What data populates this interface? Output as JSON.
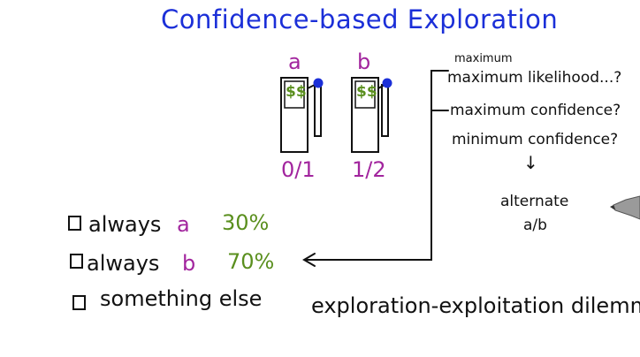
{
  "title": "Confidence-based Exploration",
  "machines": [
    {
      "label": "a",
      "symbol": "$$",
      "score": "0/1"
    },
    {
      "label": "b",
      "symbol": "$$",
      "score": "1/2"
    }
  ],
  "notes": {
    "maximum_small": "maximum",
    "maximum_likelihood": "maximum likelihood...?",
    "maximum_confidence": "maximum confidence?",
    "minimum_confidence": "minimum confidence?",
    "arrow_down": "↓",
    "alternate": "alternate",
    "alternate_ab": "a/b"
  },
  "options": [
    {
      "text": "always",
      "choice": "a",
      "percent": "30%"
    },
    {
      "text": "always",
      "choice": "b",
      "percent": "70%"
    },
    {
      "text": "something else",
      "choice": "",
      "percent": ""
    }
  ],
  "dilemma": "exploration-exploitation dilemma",
  "colors": {
    "title": "#1b2fd8",
    "choice": "#a2259e",
    "percent": "#5a8f1e",
    "knob": "#1b2fd8",
    "ink": "#111111"
  }
}
